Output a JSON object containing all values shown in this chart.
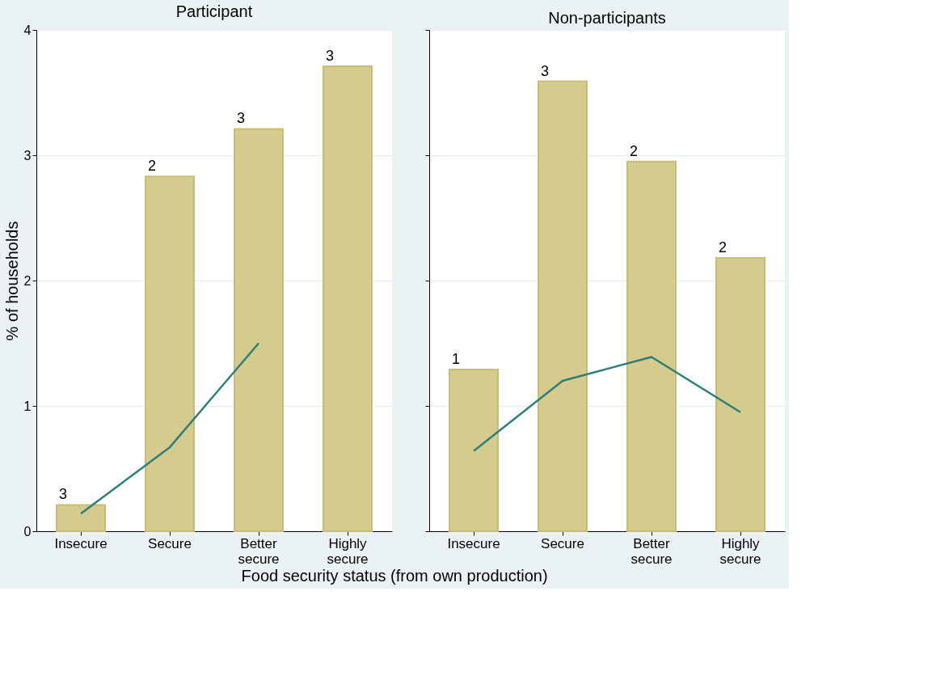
{
  "chart_data": [
    {
      "type": "bar",
      "title": "Participant",
      "ylabel": "% of households",
      "xlabel": "Food security status (from own production)",
      "categories": [
        "Insecure",
        "Secure",
        "Better\nsecure",
        "Highly\nsecure"
      ],
      "ylim": [
        0,
        4
      ],
      "yticks": [
        0,
        1,
        2,
        3,
        4
      ],
      "grid": "y",
      "annotations": [
        {
          "text": "3",
          "x": "Insecure",
          "y": 0.21
        },
        {
          "text": "2",
          "x": "Secure",
          "y": 2.83
        },
        {
          "text": "3",
          "x": "Better\nsecure",
          "y": 3.21
        },
        {
          "text": "3",
          "x": "Highly\nsecure",
          "y": 3.71
        }
      ],
      "series": [
        {
          "color": "#d4cb8c",
          "values": [
            0.21,
            2.83,
            3.21,
            3.71
          ]
        },
        {
          "type": "line",
          "color": "#2e7f7a",
          "values": [
            0.14,
            0.67,
            1.5,
            null
          ]
        }
      ]
    },
    {
      "type": "bar",
      "title": "Non-participants",
      "categories": [
        "Insecure",
        "Secure",
        "Better\nsecure",
        "Highly\nsecure"
      ],
      "ylim": [
        0,
        4
      ],
      "yticks": [
        0,
        1,
        2,
        3,
        4
      ],
      "grid": "y",
      "tick_labels": "x",
      "annotations": [
        {
          "text": "1",
          "x": "Insecure",
          "y": 1.29
        },
        {
          "text": "3",
          "x": "Secure",
          "y": 3.59
        },
        {
          "text": "2",
          "x": "Better\nsecure",
          "y": 2.95
        },
        {
          "text": "2",
          "x": "Highly\nsecure",
          "y": 2.18
        }
      ],
      "series": [
        {
          "color": "#d4cb8c",
          "values": [
            1.29,
            3.59,
            2.95,
            2.18
          ]
        },
        {
          "type": "line",
          "color": "#2e7f7a",
          "values": [
            0.64,
            1.2,
            1.39,
            0.95
          ]
        }
      ]
    }
  ]
}
